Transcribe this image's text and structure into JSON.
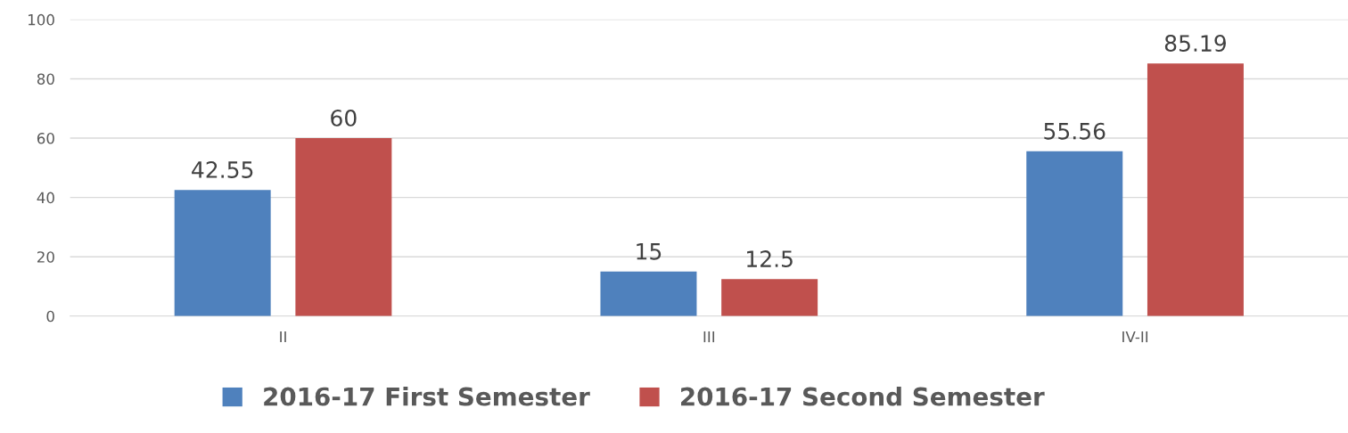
{
  "chart_data": {
    "type": "bar",
    "categories": [
      "II",
      "III",
      "IV-II"
    ],
    "series": [
      {
        "name": "2016-17 First Semester",
        "color": "#4f81bd",
        "values": [
          42.55,
          15,
          55.56
        ]
      },
      {
        "name": "2016-17 Second Semester",
        "color": "#c0504d",
        "values": [
          60,
          12.5,
          85.19
        ]
      }
    ],
    "ylim": [
      0,
      100
    ],
    "yticks": [
      0,
      20,
      40,
      60,
      80,
      100
    ],
    "grid": "y",
    "legend": "bottom",
    "data_labels": true
  }
}
